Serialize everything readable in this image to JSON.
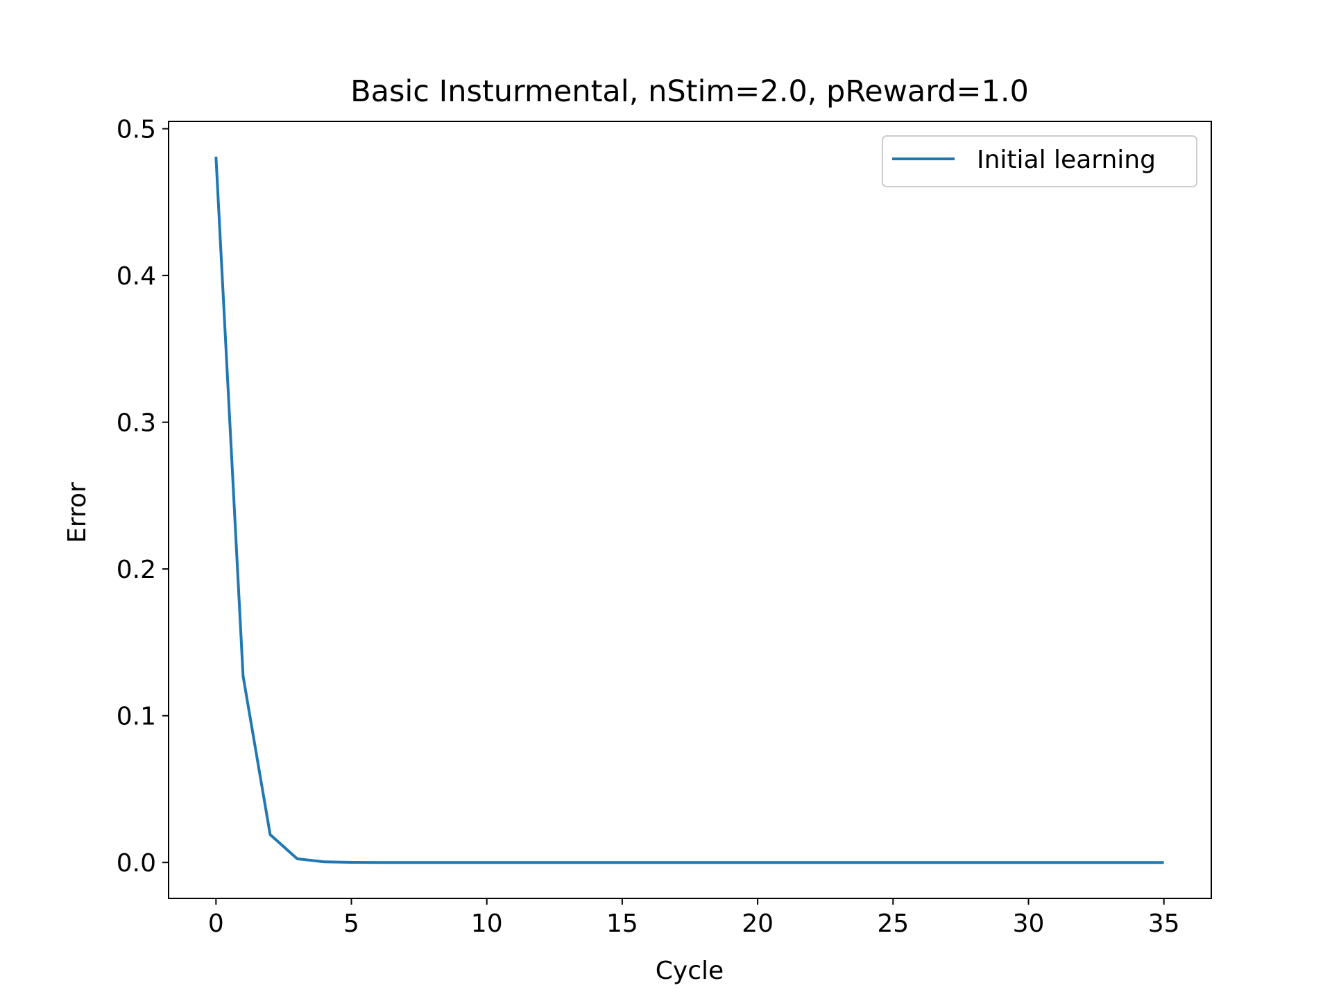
{
  "chart_data": {
    "type": "line",
    "title": "Basic Insturmental, nStim=2.0, pReward=1.0",
    "xlabel": "Cycle",
    "ylabel": "Error",
    "xlim": [
      -1.75,
      36.75
    ],
    "ylim": [
      -0.0245,
      0.505
    ],
    "xticks": [
      0,
      5,
      10,
      15,
      20,
      25,
      30,
      35
    ],
    "xtick_labels": [
      "0",
      "5",
      "10",
      "15",
      "20",
      "25",
      "30",
      "35"
    ],
    "yticks": [
      0.0,
      0.1,
      0.2,
      0.3,
      0.4,
      0.5
    ],
    "ytick_labels": [
      "0.0",
      "0.1",
      "0.2",
      "0.3",
      "0.4",
      "0.5"
    ],
    "grid": false,
    "legend": {
      "position": "upper right"
    },
    "series": [
      {
        "name": "Initial learning",
        "color": "#1f77b4",
        "x": [
          0,
          1,
          2,
          3,
          4,
          5,
          6,
          7,
          8,
          9,
          10,
          11,
          12,
          13,
          14,
          15,
          16,
          17,
          18,
          19,
          20,
          21,
          22,
          23,
          24,
          25,
          26,
          27,
          28,
          29,
          30,
          31,
          32,
          33,
          34,
          35
        ],
        "y": [
          0.481,
          0.127,
          0.019,
          0.0025,
          0.0004,
          0.0001,
          0,
          0,
          0,
          0,
          0,
          0,
          0,
          0,
          0,
          0,
          0,
          0,
          0,
          0,
          0,
          0,
          0,
          0,
          0,
          0,
          0,
          0,
          0,
          0,
          0,
          0,
          0,
          0,
          0,
          0
        ]
      }
    ]
  }
}
